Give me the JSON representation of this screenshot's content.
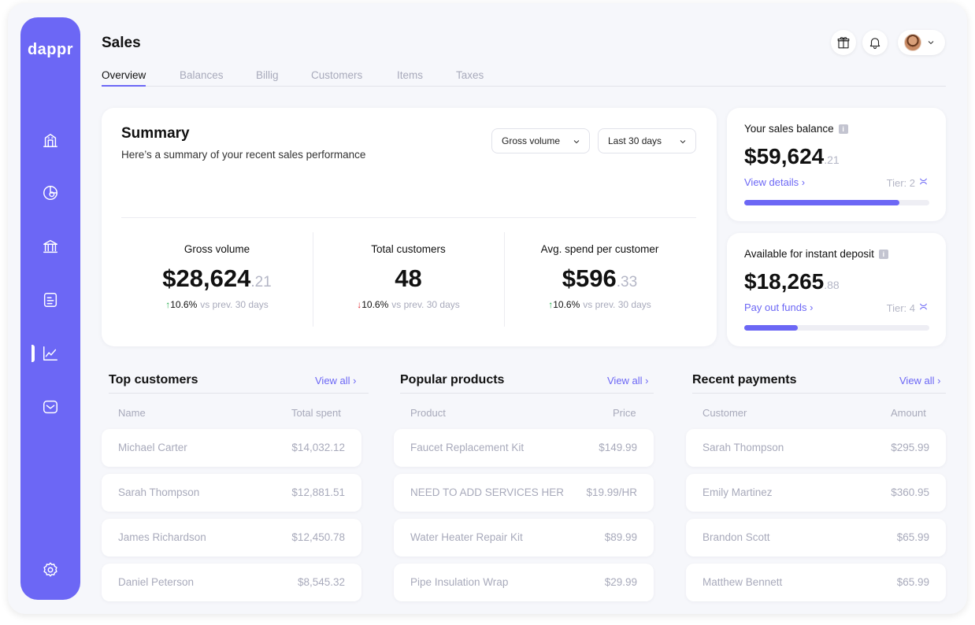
{
  "brand": {
    "logo": "dappr",
    "accent": "#6c67f5"
  },
  "sidebar": {
    "items": [
      {
        "icon": "home-icon"
      },
      {
        "icon": "pie-chart-icon"
      },
      {
        "icon": "bank-icon"
      },
      {
        "icon": "document-icon"
      },
      {
        "icon": "line-chart-icon",
        "active": true
      },
      {
        "icon": "inbox-icon"
      }
    ],
    "settings_icon": "gear-icon"
  },
  "header": {
    "title": "Sales",
    "icons": [
      "gift-icon",
      "bell-icon",
      "avatar",
      "chevron-down-icon"
    ]
  },
  "tabs": [
    {
      "label": "Overview",
      "active": true
    },
    {
      "label": "Balances"
    },
    {
      "label": "Billig"
    },
    {
      "label": "Customers"
    },
    {
      "label": "Items"
    },
    {
      "label": "Taxes"
    }
  ],
  "summary": {
    "title": "Summary",
    "subtitle": "Here’s a summary of your recent sales performance",
    "metric_select": "Gross volume",
    "period_select": "Last 30 days",
    "metrics": [
      {
        "label": "Gross volume",
        "value": "$28,624",
        "cents": ".21",
        "change": "10.6%",
        "direction": "up",
        "compare": "vs prev. 30 days"
      },
      {
        "label": "Total customers",
        "value": "48",
        "cents": "",
        "change": "10.6%",
        "direction": "down",
        "compare": "vs prev. 30 days"
      },
      {
        "label": "Avg. spend per customer",
        "value": "$596",
        "cents": ".33",
        "change": "10.6%",
        "direction": "up",
        "compare": "vs prev. 30 days"
      }
    ]
  },
  "balances": [
    {
      "label": "Your sales balance",
      "value": "$59,624",
      "cents": ".21",
      "link": "View details",
      "tier": "Tier: 2",
      "progress": 0.84
    },
    {
      "label": "Available for instant deposit",
      "value": "$18,265",
      "cents": ".88",
      "link": "Pay out funds",
      "tier": "Tier: 4",
      "progress": 0.29
    }
  ],
  "sections": [
    {
      "title": "Top customers",
      "view_all": "View all",
      "col_left": "Name",
      "col_right": "Total spent",
      "rows": [
        {
          "l": "Michael Carter",
          "r": "$14,032.12"
        },
        {
          "l": "Sarah Thompson",
          "r": "$12,881.51"
        },
        {
          "l": "James Richardson",
          "r": "$12,450.78"
        },
        {
          "l": "Daniel Peterson",
          "r": "$8,545.32"
        }
      ]
    },
    {
      "title": "Popular products",
      "view_all": "View all",
      "col_left": "Product",
      "col_right": "Price",
      "rows": [
        {
          "l": "Faucet Replacement Kit",
          "r": "$149.99"
        },
        {
          "l": "NEED TO ADD SERVICES HER",
          "r": "$19.99/HR"
        },
        {
          "l": "Water Heater Repair Kit",
          "r": "$89.99"
        },
        {
          "l": "Pipe Insulation Wrap",
          "r": "$29.99"
        }
      ]
    },
    {
      "title": "Recent payments",
      "view_all": "View all",
      "col_left": "Customer",
      "col_right": "Amount",
      "rows": [
        {
          "l": "Sarah Thompson",
          "r": "$295.99"
        },
        {
          "l": "Emily Martinez",
          "r": "$360.95"
        },
        {
          "l": "Brandon Scott",
          "r": "$65.99"
        },
        {
          "l": "Matthew Bennett",
          "r": "$65.99"
        }
      ]
    }
  ]
}
